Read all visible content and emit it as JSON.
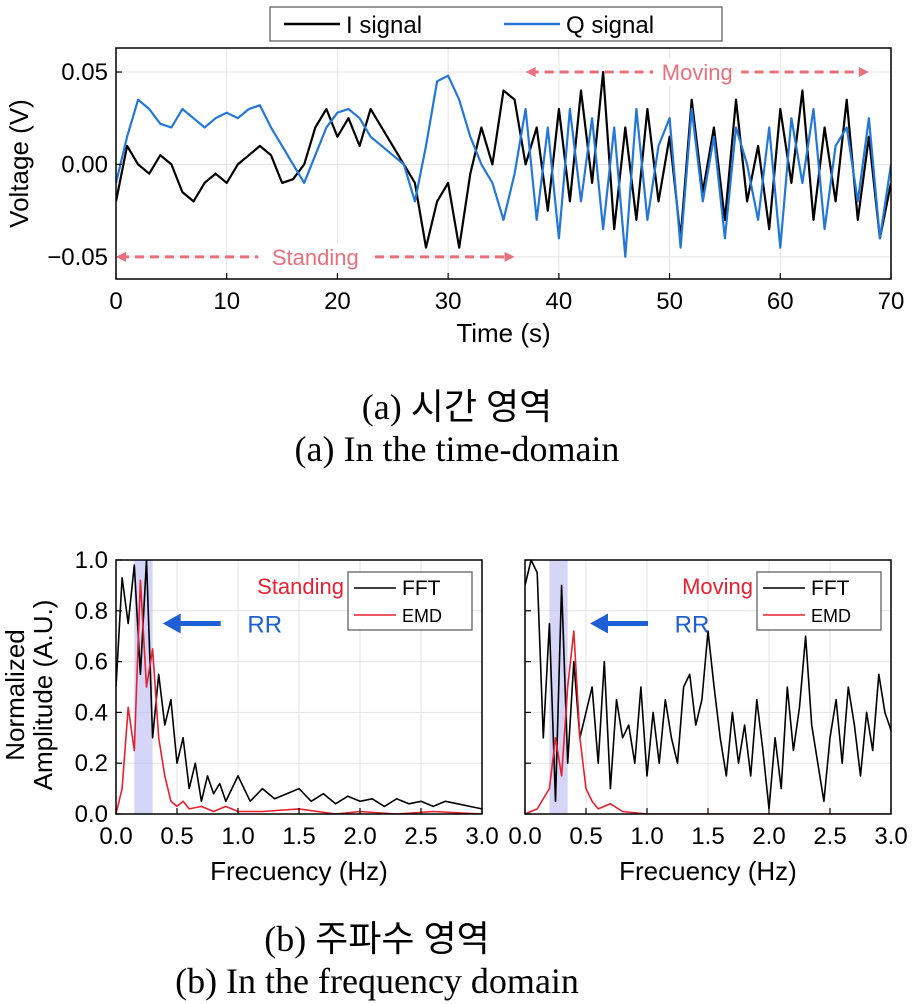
{
  "chart_data": [
    {
      "id": "time",
      "type": "line",
      "xlabel": "Time (s)",
      "ylabel": "Voltage (V)",
      "xlim": [
        0,
        70
      ],
      "ylim": [
        -0.062,
        0.063
      ],
      "xticks": [
        0,
        10,
        20,
        30,
        40,
        50,
        60,
        70
      ],
      "yticks": [
        -0.05,
        0.0,
        0.05
      ],
      "ytick_labels": [
        "−0.05",
        "0.00",
        "0.05"
      ],
      "grid": true,
      "legend": "top-center",
      "annotations": [
        {
          "text": "Standing",
          "x_range": [
            0,
            36
          ],
          "y": -0.05,
          "color": "#e8707a"
        },
        {
          "text": "Moving",
          "x_range": [
            37,
            68
          ],
          "y": 0.05,
          "color": "#e8707a"
        }
      ],
      "series": [
        {
          "name": "I signal",
          "color": "#000000",
          "x": [
            0,
            1,
            2,
            3,
            4,
            5,
            6,
            7,
            8,
            9,
            10,
            11,
            12,
            13,
            14,
            15,
            16,
            17,
            18,
            19,
            20,
            21,
            22,
            23,
            24,
            25,
            26,
            27,
            28,
            29,
            30,
            31,
            32,
            33,
            34,
            35,
            36,
            37,
            38,
            39,
            40,
            41,
            42,
            43,
            44,
            45,
            46,
            47,
            48,
            49,
            50,
            51,
            52,
            53,
            54,
            55,
            56,
            57,
            58,
            59,
            60,
            61,
            62,
            63,
            64,
            65,
            66,
            67,
            68,
            69,
            70
          ],
          "y": [
            -0.02,
            0.01,
            0.0,
            -0.005,
            0.005,
            0.0,
            -0.015,
            -0.02,
            -0.01,
            -0.005,
            -0.01,
            0.0,
            0.005,
            0.01,
            0.005,
            -0.01,
            -0.008,
            0.0,
            0.02,
            0.03,
            0.015,
            0.025,
            0.01,
            0.03,
            0.02,
            0.01,
            0.0,
            -0.01,
            -0.045,
            -0.02,
            -0.01,
            -0.045,
            -0.005,
            0.02,
            0.0,
            0.04,
            0.035,
            0.0,
            0.02,
            -0.025,
            0.03,
            -0.02,
            0.04,
            -0.01,
            0.05,
            -0.035,
            0.02,
            -0.03,
            0.03,
            -0.02,
            0.015,
            -0.04,
            0.035,
            -0.015,
            0.02,
            -0.03,
            0.035,
            -0.02,
            0.01,
            -0.035,
            0.03,
            -0.01,
            0.04,
            -0.03,
            0.02,
            -0.02,
            0.035,
            -0.03,
            0.015,
            -0.04,
            -0.01
          ]
        },
        {
          "name": "Q signal",
          "color": "#2277d8",
          "x": [
            0,
            1,
            2,
            3,
            4,
            5,
            6,
            7,
            8,
            9,
            10,
            11,
            12,
            13,
            14,
            15,
            16,
            17,
            18,
            19,
            20,
            21,
            22,
            23,
            24,
            25,
            26,
            27,
            28,
            29,
            30,
            31,
            32,
            33,
            34,
            35,
            36,
            37,
            38,
            39,
            40,
            41,
            42,
            43,
            44,
            45,
            46,
            47,
            48,
            49,
            50,
            51,
            52,
            53,
            54,
            55,
            56,
            57,
            58,
            59,
            60,
            61,
            62,
            63,
            64,
            65,
            66,
            67,
            68,
            69,
            70
          ],
          "y": [
            -0.01,
            0.015,
            0.035,
            0.03,
            0.022,
            0.02,
            0.03,
            0.025,
            0.02,
            0.025,
            0.028,
            0.025,
            0.03,
            0.032,
            0.02,
            0.01,
            0.0,
            -0.01,
            0.005,
            0.02,
            0.028,
            0.03,
            0.025,
            0.015,
            0.01,
            0.005,
            0.0,
            -0.02,
            0.01,
            0.045,
            0.048,
            0.035,
            0.015,
            0.0,
            -0.01,
            -0.03,
            -0.005,
            0.03,
            -0.03,
            0.02,
            -0.04,
            0.03,
            -0.02,
            0.025,
            -0.035,
            0.02,
            -0.05,
            0.03,
            -0.03,
            0.01,
            0.025,
            -0.045,
            0.03,
            -0.02,
            0.015,
            -0.04,
            0.02,
            0.0,
            -0.03,
            0.02,
            -0.045,
            0.025,
            -0.01,
            0.03,
            -0.035,
            0.01,
            0.02,
            -0.02,
            0.025,
            -0.04,
            0.0
          ]
        }
      ]
    },
    {
      "id": "freq-standing",
      "type": "line",
      "xlabel": "Frecuency (Hz)",
      "ylabel": "Normalized Amplitude (A.U.)",
      "xlim": [
        0,
        3.0
      ],
      "ylim": [
        0,
        1.0
      ],
      "xticks": [
        0.0,
        0.5,
        1.0,
        1.5,
        2.0,
        2.5,
        3.0
      ],
      "yticks": [
        0.0,
        0.2,
        0.4,
        0.6,
        0.8,
        1.0
      ],
      "grid": true,
      "legend": "top-right",
      "state_label": "Standing",
      "highlight_band": [
        0.15,
        0.3
      ],
      "annotations": [
        {
          "text": "RR",
          "color": "#1f5fd6",
          "arrow_at": [
            0.35,
            0.75
          ]
        }
      ],
      "series": [
        {
          "name": "FFT",
          "color": "#000000",
          "x": [
            0.0,
            0.05,
            0.1,
            0.15,
            0.2,
            0.25,
            0.3,
            0.35,
            0.4,
            0.45,
            0.5,
            0.55,
            0.6,
            0.65,
            0.7,
            0.75,
            0.8,
            0.85,
            0.9,
            0.95,
            1.0,
            1.1,
            1.2,
            1.3,
            1.4,
            1.5,
            1.6,
            1.7,
            1.8,
            1.9,
            2.0,
            2.1,
            2.2,
            2.3,
            2.4,
            2.5,
            2.6,
            2.7,
            2.8,
            2.9,
            3.0
          ],
          "y": [
            0.5,
            0.93,
            0.75,
            0.98,
            0.55,
            1.0,
            0.3,
            0.55,
            0.35,
            0.45,
            0.2,
            0.3,
            0.1,
            0.2,
            0.05,
            0.15,
            0.08,
            0.12,
            0.05,
            0.1,
            0.15,
            0.05,
            0.1,
            0.06,
            0.08,
            0.1,
            0.05,
            0.08,
            0.04,
            0.07,
            0.05,
            0.06,
            0.03,
            0.06,
            0.04,
            0.05,
            0.03,
            0.05,
            0.04,
            0.03,
            0.02
          ]
        },
        {
          "name": "EMD",
          "color": "#e8202f",
          "x": [
            0.0,
            0.05,
            0.1,
            0.15,
            0.2,
            0.25,
            0.3,
            0.35,
            0.4,
            0.45,
            0.5,
            0.55,
            0.6,
            0.7,
            0.8,
            0.9,
            1.0,
            1.2,
            1.5,
            1.8,
            2.0,
            2.3,
            2.6,
            3.0
          ],
          "y": [
            0.0,
            0.1,
            0.42,
            0.25,
            0.92,
            0.5,
            0.65,
            0.3,
            0.15,
            0.05,
            0.03,
            0.05,
            0.02,
            0.03,
            0.01,
            0.03,
            0.01,
            0.01,
            0.02,
            0.0,
            0.01,
            0.0,
            0.01,
            0.0
          ]
        }
      ]
    },
    {
      "id": "freq-moving",
      "type": "line",
      "xlabel": "Frecuency (Hz)",
      "ylabel": "",
      "xlim": [
        0,
        3.0
      ],
      "ylim": [
        0,
        1.0
      ],
      "xticks": [
        0.0,
        0.5,
        1.0,
        1.5,
        2.0,
        2.5,
        3.0
      ],
      "yticks": [
        0.0,
        0.2,
        0.4,
        0.6,
        0.8,
        1.0
      ],
      "grid": true,
      "legend": "top-right",
      "state_label": "Moving",
      "highlight_band": [
        0.2,
        0.35
      ],
      "annotations": [
        {
          "text": "RR",
          "color": "#1f5fd6",
          "arrow_at": [
            0.5,
            0.75
          ]
        }
      ],
      "series": [
        {
          "name": "FFT",
          "color": "#000000",
          "x": [
            0.0,
            0.05,
            0.1,
            0.15,
            0.2,
            0.25,
            0.3,
            0.35,
            0.4,
            0.45,
            0.5,
            0.55,
            0.6,
            0.65,
            0.7,
            0.75,
            0.8,
            0.85,
            0.9,
            0.95,
            1.0,
            1.05,
            1.1,
            1.15,
            1.2,
            1.25,
            1.3,
            1.35,
            1.4,
            1.45,
            1.5,
            1.55,
            1.6,
            1.65,
            1.7,
            1.75,
            1.8,
            1.85,
            1.9,
            1.95,
            2.0,
            2.05,
            2.1,
            2.15,
            2.2,
            2.25,
            2.3,
            2.35,
            2.4,
            2.45,
            2.5,
            2.55,
            2.6,
            2.65,
            2.7,
            2.75,
            2.8,
            2.85,
            2.9,
            2.95,
            3.0
          ],
          "y": [
            0.9,
            1.0,
            0.95,
            0.3,
            0.75,
            0.05,
            0.9,
            0.2,
            0.6,
            0.3,
            0.4,
            0.5,
            0.2,
            0.6,
            0.1,
            0.45,
            0.3,
            0.35,
            0.2,
            0.5,
            0.15,
            0.4,
            0.2,
            0.45,
            0.3,
            0.2,
            0.5,
            0.55,
            0.35,
            0.45,
            0.72,
            0.5,
            0.3,
            0.15,
            0.4,
            0.2,
            0.35,
            0.15,
            0.45,
            0.25,
            0.02,
            0.3,
            0.1,
            0.5,
            0.25,
            0.42,
            0.7,
            0.35,
            0.2,
            0.05,
            0.3,
            0.45,
            0.2,
            0.5,
            0.35,
            0.15,
            0.4,
            0.25,
            0.55,
            0.4,
            0.33
          ]
        },
        {
          "name": "EMD",
          "color": "#e8202f",
          "x": [
            0.0,
            0.1,
            0.2,
            0.25,
            0.3,
            0.35,
            0.4,
            0.45,
            0.5,
            0.55,
            0.6,
            0.7,
            0.8,
            1.0,
            1.5,
            2.0,
            2.5,
            3.0
          ],
          "y": [
            0.0,
            0.02,
            0.1,
            0.3,
            0.15,
            0.5,
            0.72,
            0.3,
            0.1,
            0.05,
            0.02,
            0.04,
            0.01,
            0.0,
            0.0,
            0.0,
            0.0,
            0.0
          ]
        }
      ]
    }
  ],
  "captions": {
    "a_korean": "(a)  시간  영역",
    "a_english": "(a)  In the time-domain",
    "b_korean": "(b)  주파수  영역",
    "b_english": "(b)  In the frequency domain"
  }
}
